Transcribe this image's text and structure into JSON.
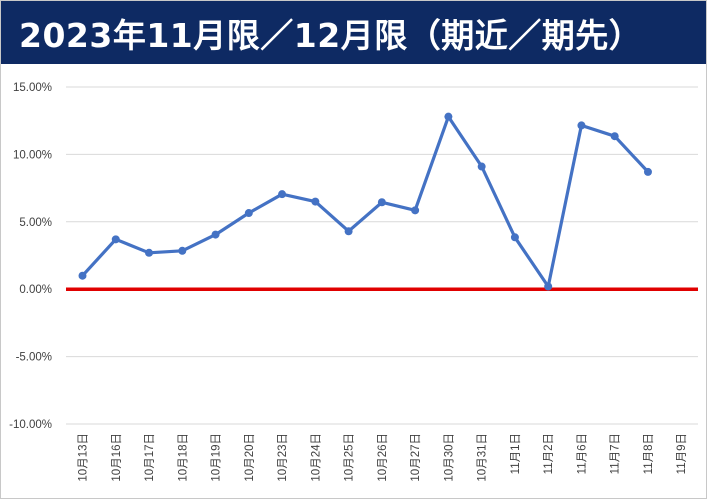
{
  "title": "2023年11月限／12月限（期近／期先）",
  "colors": {
    "title_bg": "#0e2a63",
    "title_text": "#ffffff",
    "series": "#4472c4",
    "zero_line": "#e00000",
    "grid": "#d9d9d9"
  },
  "chart_data": {
    "type": "line",
    "title": "",
    "xlabel": "",
    "ylabel": "",
    "ylim": [
      -10,
      15
    ],
    "yticks": [
      15,
      10,
      5,
      0,
      -5,
      -10
    ],
    "ytick_labels": [
      "15.00%",
      "10.00%",
      "5.00%",
      "0.00%",
      "-5.00%",
      "-10.00%"
    ],
    "categories": [
      "10月13日",
      "10月16日",
      "10月17日",
      "10月18日",
      "10月19日",
      "10月20日",
      "10月23日",
      "10月24日",
      "10月25日",
      "10月26日",
      "10月27日",
      "10月30日",
      "10月31日",
      "11月1日",
      "11月2日",
      "11月6日",
      "11月7日",
      "11月8日",
      "11月9日"
    ],
    "series": [
      {
        "values": [
          1.0,
          3.7,
          2.7,
          2.85,
          4.05,
          5.65,
          7.05,
          6.5,
          4.3,
          6.45,
          5.85,
          12.8,
          9.1,
          3.85,
          0.2,
          12.15,
          11.35,
          8.7,
          null
        ]
      }
    ],
    "reference_line": 0,
    "grid": true,
    "legend": "none"
  }
}
